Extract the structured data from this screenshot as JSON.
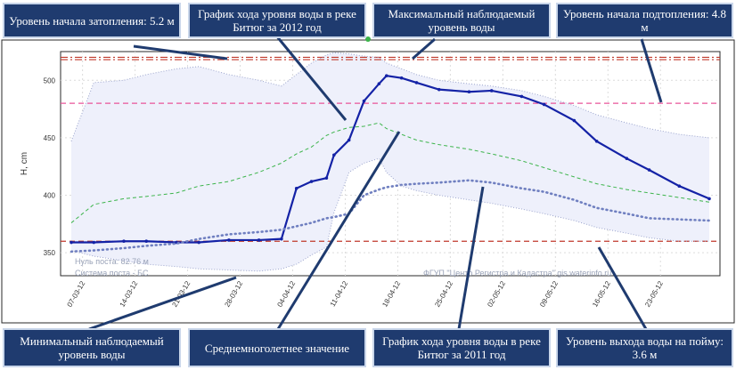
{
  "chart_data": {
    "type": "line",
    "ylabel": "H, cm",
    "ylim": [
      330,
      525
    ],
    "y_ticks": [
      350,
      400,
      450,
      500
    ],
    "x_tick_labels": [
      "07-03-12",
      "14-03-12",
      "21-03-12",
      "28-03-12",
      "04-04-12",
      "11-04-12",
      "18-04-12",
      "25-04-12",
      "02-05-12",
      "09-05-12",
      "16-05-12",
      "23-05-12"
    ],
    "grid": true,
    "x_days": [
      0,
      3,
      7,
      10,
      14,
      17,
      21,
      25,
      28,
      30,
      32,
      34,
      35,
      37,
      39,
      41,
      42,
      44,
      46,
      49,
      53,
      56,
      60,
      63,
      67,
      70,
      74,
      77,
      81,
      85
    ],
    "series": [
      {
        "name": "2012",
        "color": "#1422a6",
        "style": "solid-markers",
        "values": [
          359,
          359,
          360,
          360,
          359,
          359,
          361,
          361,
          362,
          406,
          412,
          415,
          435,
          448,
          482,
          497,
          504,
          502,
          498,
          492,
          490,
          491,
          486,
          479,
          465,
          447,
          432,
          422,
          408,
          397
        ]
      },
      {
        "name": "2011",
        "color": "#6f7fc0",
        "style": "dotted",
        "values": [
          351,
          352,
          354,
          356,
          358,
          362,
          366,
          368,
          370,
          373,
          376,
          380,
          381,
          384,
          400,
          405,
          407,
          409,
          410,
          411,
          413,
          411,
          406,
          403,
          396,
          389,
          384,
          380,
          379,
          378
        ]
      },
      {
        "name": "avg",
        "color": "#3cb44b",
        "style": "dashed",
        "values": [
          376,
          392,
          397,
          399,
          402,
          408,
          412,
          420,
          428,
          436,
          442,
          452,
          455,
          459,
          460,
          463,
          458,
          453,
          448,
          444,
          440,
          436,
          430,
          424,
          416,
          410,
          405,
          402,
          398,
          394
        ]
      },
      {
        "name": "max-envelope",
        "color": "#9aa3cc",
        "style": "dotted-band-top",
        "values": [
          447,
          498,
          500,
          505,
          510,
          512,
          505,
          500,
          495,
          505,
          515,
          522,
          524,
          523,
          521,
          520,
          515,
          510,
          505,
          500,
          497,
          495,
          491,
          486,
          478,
          470,
          463,
          458,
          453,
          450
        ]
      },
      {
        "name": "min-envelope",
        "color": "#9aa3cc",
        "style": "dotted-band-bottom",
        "values": [
          352,
          347,
          343,
          340,
          338,
          336,
          335,
          334,
          336,
          340,
          348,
          355,
          385,
          420,
          428,
          432,
          420,
          408,
          404,
          400,
          396,
          393,
          388,
          384,
          378,
          372,
          367,
          363,
          360,
          360
        ]
      }
    ],
    "reference_lines": [
      {
        "name": "flood-start-level",
        "value": 520,
        "color": "#c0392b",
        "style": "dash-dot"
      },
      {
        "name": "observed-max-level",
        "value": 518,
        "color": "#c0392b",
        "style": "dash-dot"
      },
      {
        "name": "underflood-start-level",
        "value": 480,
        "color": "#e8549a",
        "style": "dashed"
      },
      {
        "name": "floodplain-exit-level",
        "value": 360,
        "color": "#c0392b",
        "style": "dashed"
      }
    ],
    "watermarks": {
      "zero": "Нуль поста: 82.76 м",
      "system": "Система поста - БС",
      "source": "ФГУП \"Центр Регистра и Кадастра\"  gis.waterinfo.ru"
    }
  },
  "callouts": {
    "flood_start": "Уровень начала затопления: 5.2 м",
    "graph_2012": "График хода уровня воды в реке Битюг за 2012 год",
    "max_observed": "Максимальный наблюдаемый уровень воды",
    "underflood_start": "Уровень начала подтопления: 4.8 м",
    "min_observed": "Минимальный наблюдаемый уровень воды",
    "long_term_avg": "Среднемноголетнее значение",
    "graph_2011": "График хода уровня воды в реке Битюг за 2011 год",
    "floodplain_exit": "Уровень выхода воды на пойму: 3.6 м"
  }
}
